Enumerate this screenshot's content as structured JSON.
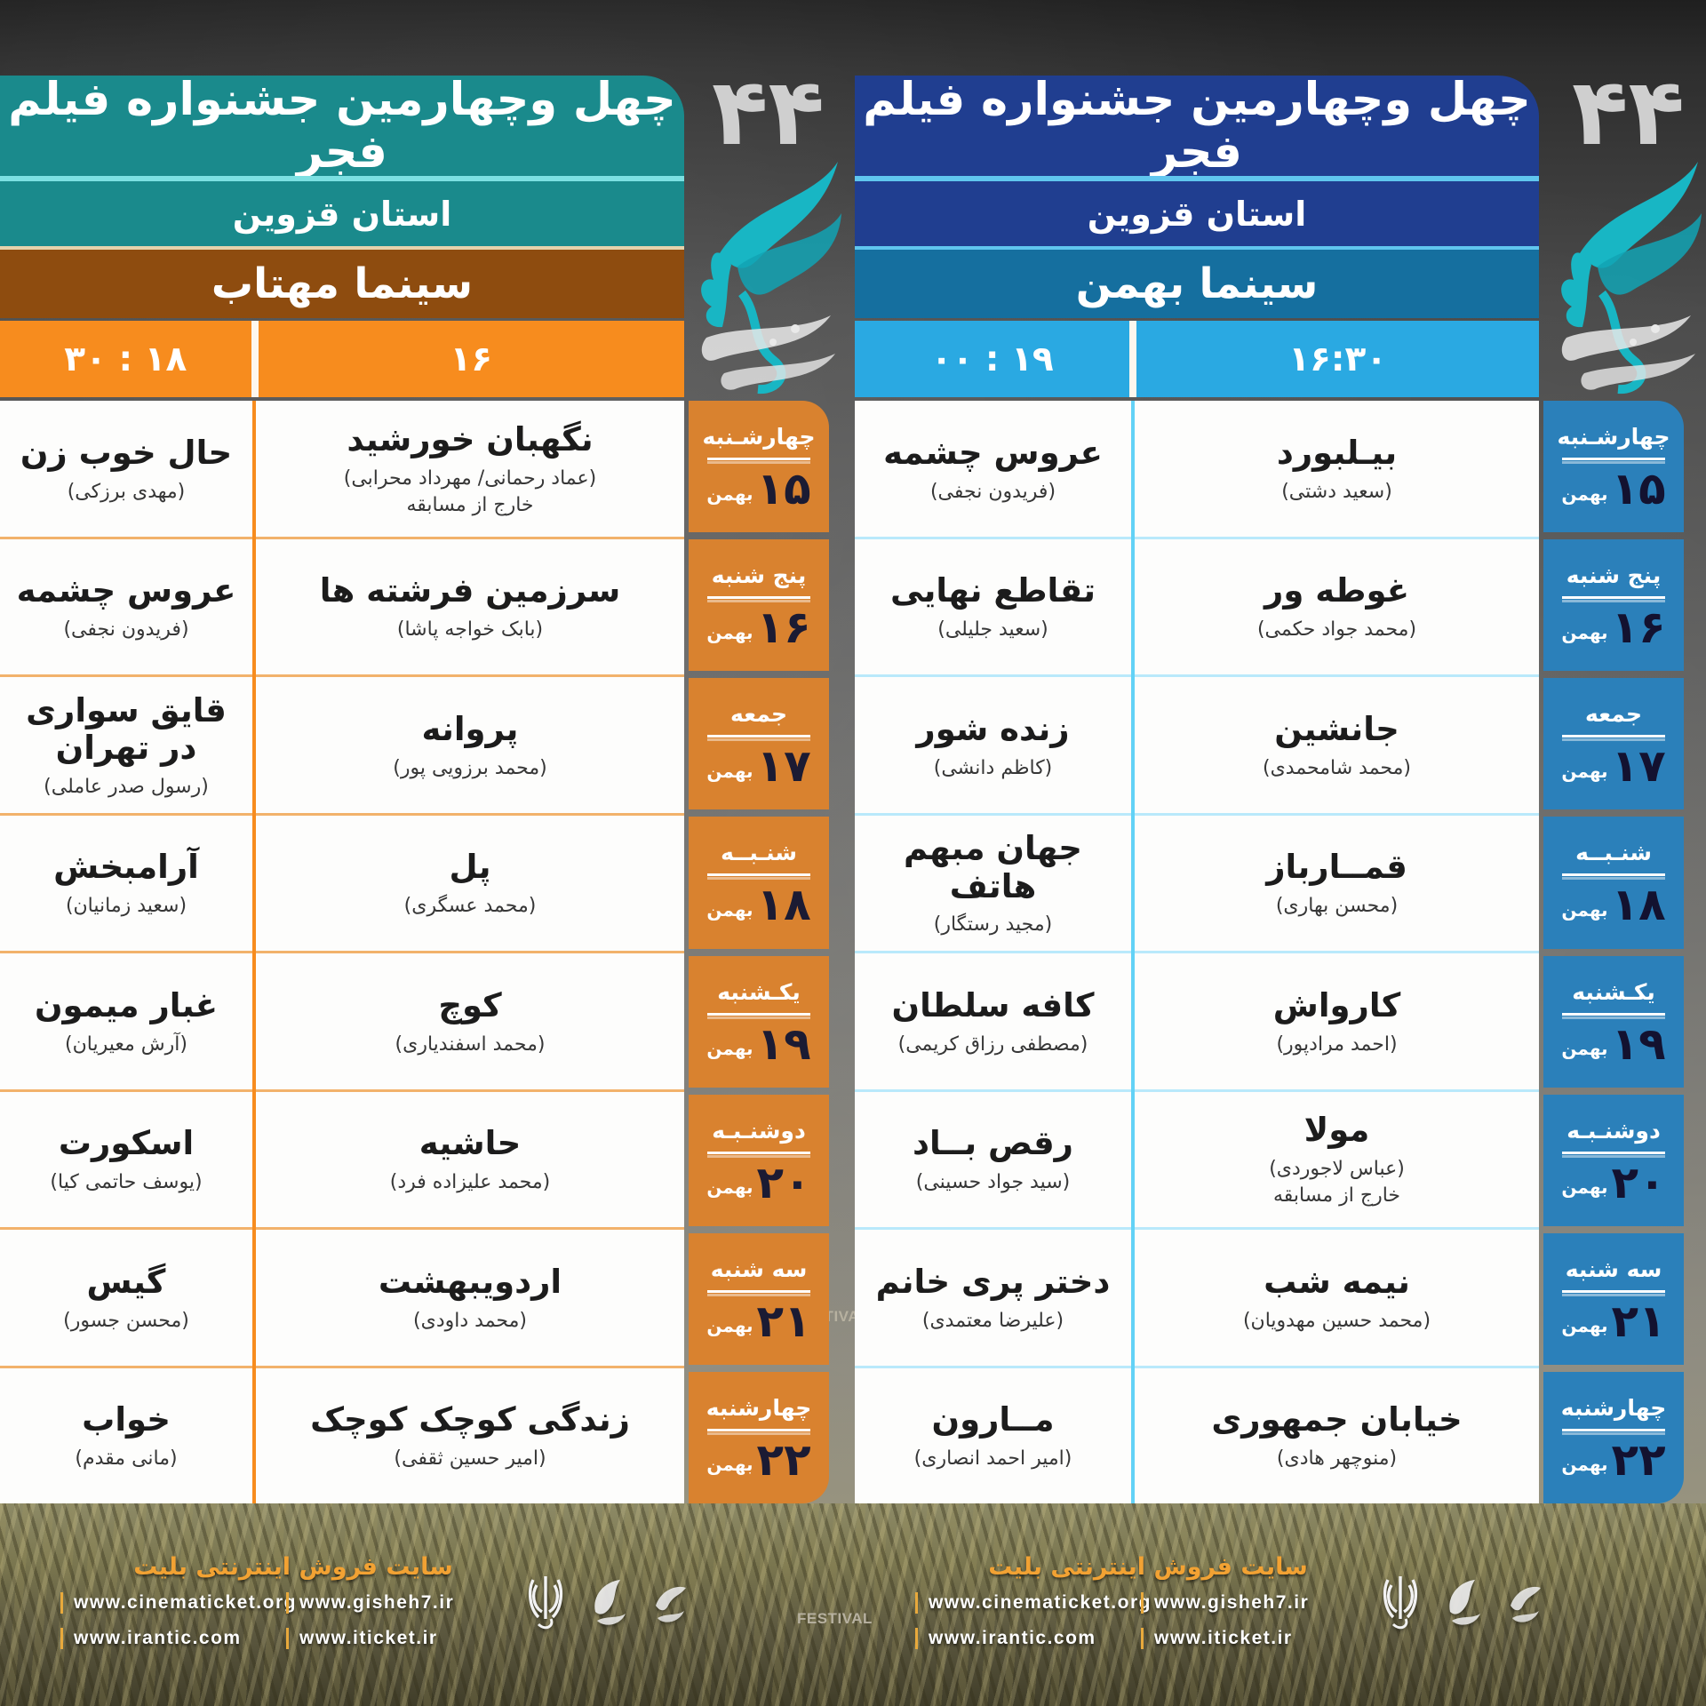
{
  "days": [
    {
      "name": "چهارشـنبه",
      "date": "۱۵",
      "month": "بهمن"
    },
    {
      "name": "پنج شنبه",
      "date": "۱۶",
      "month": "بهمن"
    },
    {
      "name": "جمعه",
      "date": "۱۷",
      "month": "بهمن"
    },
    {
      "name": "شنـبــه",
      "date": "۱۸",
      "month": "بهمن"
    },
    {
      "name": "یکـشنبه",
      "date": "۱۹",
      "month": "بهمن"
    },
    {
      "name": "دوشنـبـه",
      "date": "۲۰",
      "month": "بهمن"
    },
    {
      "name": "سه شنبه",
      "date": "۲۱",
      "month": "بهمن"
    },
    {
      "name": "چهارشنبه",
      "date": "۲۲",
      "month": "بهمن"
    }
  ],
  "festival_logo": {
    "number": "۴۴",
    "phoenix": "simurgh-calligraphy"
  },
  "posters": [
    {
      "title": "چهل وچهارمین جشنواره فیلم فجر",
      "province": "استان قزوین",
      "cinema": "سینما مهتاب",
      "times": [
        "۱۸ : ۳۰",
        "۱۶"
      ],
      "colors": {
        "header": "#1a8a8c",
        "divider": "#7ce0e2",
        "divider2": "#e6d3ac",
        "cinema_band": "#8e4c0f",
        "time_band": "#f78c1e",
        "day_cell": "#d9822f",
        "grid": "#f78c1e",
        "row_line": "#f2b26b",
        "date": "#1b1b33"
      },
      "rows": [
        {
          "cells": [
            {
              "title": "حال خوب زن",
              "director": "(مهدی برزکی)",
              "note": ""
            },
            {
              "title": "نگهبان خورشید",
              "director": "(عماد رحمانی/ مهرداد محرابی)",
              "note": "خارج از مسابقه"
            }
          ]
        },
        {
          "cells": [
            {
              "title": "عروس چشمه",
              "director": "(فریدون نجفی)",
              "note": ""
            },
            {
              "title": "سرزمین فرشته ها",
              "director": "(بابک خواجه پاشا)",
              "note": ""
            }
          ]
        },
        {
          "cells": [
            {
              "title": "قایق سواری در تهران",
              "director": "(رسول صدر عاملی)",
              "note": ""
            },
            {
              "title": "پروانه",
              "director": "(محمد برزویی پور)",
              "note": ""
            }
          ]
        },
        {
          "cells": [
            {
              "title": "آرامبخش",
              "director": "(سعید زمانیان)",
              "note": ""
            },
            {
              "title": "پل",
              "director": "(محمد عسگری)",
              "note": ""
            }
          ]
        },
        {
          "cells": [
            {
              "title": "غبار میمون",
              "director": "(آرش معیریان)",
              "note": ""
            },
            {
              "title": "کوچ",
              "director": "(محمد اسفندیاری)",
              "note": ""
            }
          ]
        },
        {
          "cells": [
            {
              "title": "اسکورت",
              "director": "(یوسف حاتمی کیا)",
              "note": ""
            },
            {
              "title": "حاشیه",
              "director": "(محمد علیزاده فرد)",
              "note": ""
            }
          ]
        },
        {
          "cells": [
            {
              "title": "گیس",
              "director": "(محسن جسور)",
              "note": ""
            },
            {
              "title": "اردویبهشت",
              "director": "(محمد داودی)",
              "note": ""
            }
          ]
        },
        {
          "cells": [
            {
              "title": "خواب",
              "director": "(مانی مقدم)",
              "note": ""
            },
            {
              "title": "زندگی کوچک کوچک",
              "director": "(امیر حسین ثقفی)",
              "note": ""
            }
          ]
        }
      ]
    },
    {
      "title": "چهل وچهارمین جشنواره فیلم فجر",
      "province": "استان قزوین",
      "cinema": "سینما بهمن",
      "times": [
        "۱۹ : ۰۰",
        "۱۶:۳۰"
      ],
      "colors": {
        "header": "#203e90",
        "divider": "#60c6ef",
        "divider2": "#60c6ef",
        "cinema_band": "#156f9f",
        "time_band": "#2aa9e2",
        "day_cell": "#2b80ba",
        "grid": "#62d2f6",
        "row_line": "#b9e9fb",
        "date": "#131230"
      },
      "rows": [
        {
          "cells": [
            {
              "title": "عروس چشمه",
              "director": "(فریدون نجفی)",
              "note": ""
            },
            {
              "title": "بیـلبورد",
              "director": "(سعید دشتی)",
              "note": ""
            }
          ]
        },
        {
          "cells": [
            {
              "title": "تقاطع نهایی",
              "director": "(سعید جلیلی)",
              "note": ""
            },
            {
              "title": "غوطه ور",
              "director": "(محمد جواد حکمی)",
              "note": ""
            }
          ]
        },
        {
          "cells": [
            {
              "title": "زنده شور",
              "director": "(کاظم دانشی)",
              "note": ""
            },
            {
              "title": "جانشین",
              "director": "(محمد شامحمدی)",
              "note": ""
            }
          ]
        },
        {
          "cells": [
            {
              "title": "جهان مبهم هاتف",
              "director": "(مجید رستگار)",
              "note": ""
            },
            {
              "title": "قمــارباز",
              "director": "(محسن بهاری)",
              "note": ""
            }
          ]
        },
        {
          "cells": [
            {
              "title": "کافه سلطان",
              "director": "(مصطفی رزاق کریمی)",
              "note": ""
            },
            {
              "title": "کارواش",
              "director": "(احمد مرادپور)",
              "note": ""
            }
          ]
        },
        {
          "cells": [
            {
              "title": "رقص بــاد",
              "director": "(سید جواد حسینی)",
              "note": ""
            },
            {
              "title": "مولا",
              "director": "(عباس لاجوردی)",
              "note": "خارج از مسابقه"
            }
          ]
        },
        {
          "cells": [
            {
              "title": "دختر پری خانم",
              "director": "(علیرضا معتمدی)",
              "note": ""
            },
            {
              "title": "نیمه شب",
              "director": "(محمد حسین مهدویان)",
              "note": ""
            }
          ]
        },
        {
          "cells": [
            {
              "title": "مــارون",
              "director": "(امیر احمد انصاری)",
              "note": ""
            },
            {
              "title": "خیابان جمهوری",
              "director": "(منوچهر هادی)",
              "note": ""
            }
          ]
        }
      ]
    }
  ],
  "footer": {
    "title": "سایت فروش اینترنتی بلیت",
    "links": [
      [
        "www.cinematicket.org",
        "www.gisheh7.ir"
      ],
      [
        "www.irantic.com",
        "www.iticket.ir"
      ]
    ],
    "watermark": "FESTIVAL"
  }
}
